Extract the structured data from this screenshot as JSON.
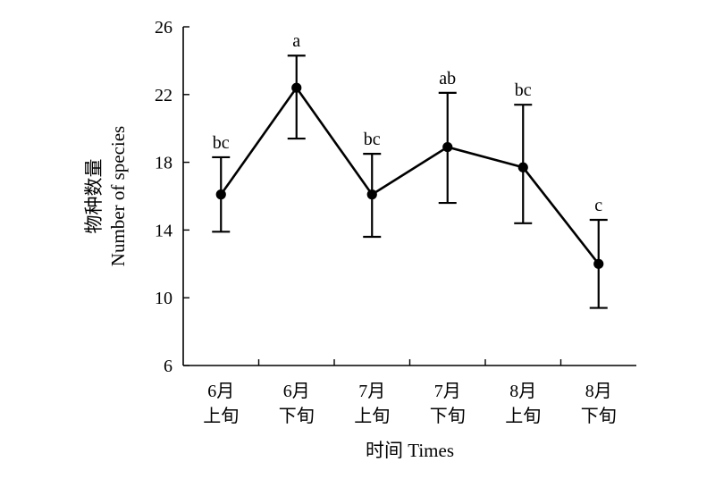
{
  "chart_data": {
    "type": "line",
    "categories": [
      [
        "6月",
        "上旬"
      ],
      [
        "6月",
        "下旬"
      ],
      [
        "7月",
        "上旬"
      ],
      [
        "7月",
        "下旬"
      ],
      [
        "8月",
        "上旬"
      ],
      [
        "8月",
        "下旬"
      ]
    ],
    "series": [
      {
        "values": [
          16.1,
          22.4,
          16.1,
          18.9,
          17.7,
          12.0
        ],
        "error_low": [
          13.9,
          19.4,
          13.6,
          15.6,
          14.4,
          9.4
        ],
        "error_high": [
          18.3,
          24.3,
          18.5,
          22.1,
          21.4,
          14.6
        ],
        "significance_labels": [
          "bc",
          "a",
          "bc",
          "ab",
          "bc",
          "c"
        ],
        "color": "#000000",
        "marker": "filled-circle"
      }
    ],
    "xlabel": "时间 Times",
    "ylabel_lines": [
      "物种数量",
      "Number of species"
    ],
    "ylim": [
      6,
      26
    ],
    "yticks": [
      6,
      10,
      14,
      18,
      22,
      26
    ],
    "grid": false,
    "legend": "none"
  }
}
